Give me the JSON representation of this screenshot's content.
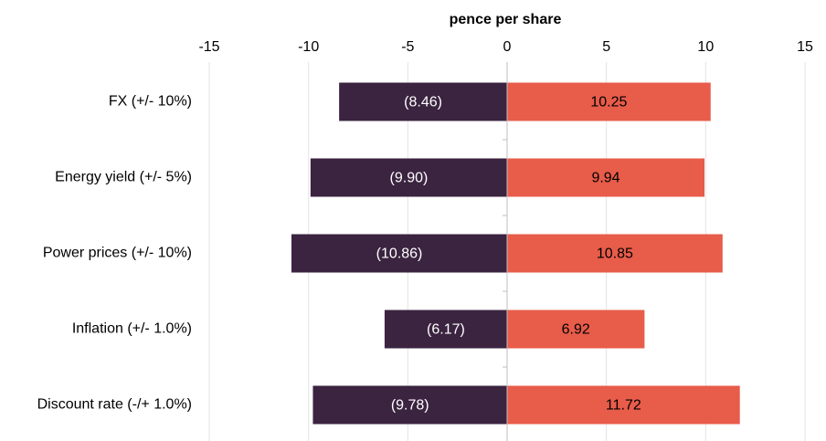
{
  "chart_data": {
    "type": "bar",
    "orientation": "horizontal",
    "x_label": "pence per share",
    "categories": [
      "FX (+/- 10%)",
      "Energy yield (+/- 5%)",
      "Power prices (+/- 10%)",
      "Inflation (+/- 1.0%)",
      "Discount rate (-/+ 1.0%)"
    ],
    "series": [
      {
        "color": "#3b2440",
        "label_color": "#ffffff",
        "values": [
          -8.46,
          -9.9,
          -10.86,
          -6.17,
          -9.78
        ],
        "value_labels": [
          "(8.46)",
          "(9.90)",
          "(10.86)",
          "(6.17)",
          "(9.78)"
        ]
      },
      {
        "color": "#e85c4a",
        "label_color": "#000000",
        "values": [
          10.25,
          9.94,
          10.85,
          6.92,
          11.72
        ],
        "value_labels": [
          "10.25",
          "9.94",
          "10.85",
          "6.92",
          "11.72"
        ]
      }
    ],
    "xlim": [
      -15,
      15
    ],
    "xticks": [
      -15,
      -10,
      -5,
      0,
      5,
      10,
      15
    ],
    "grid": true
  }
}
